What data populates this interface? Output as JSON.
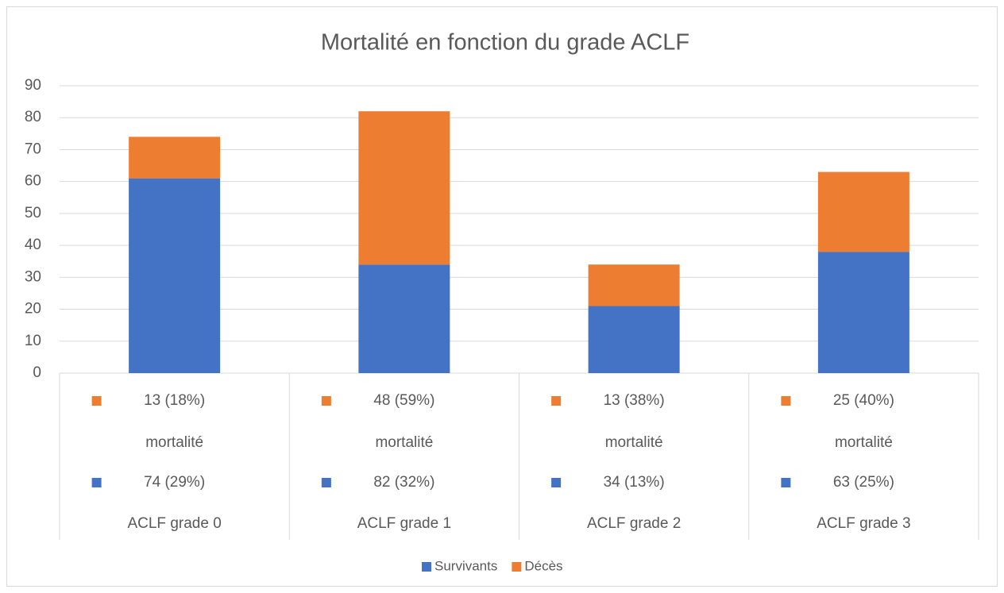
{
  "chart_data": {
    "type": "bar",
    "stacked": true,
    "title": "Mortalité en fonction du grade ACLF",
    "categories": [
      "ACLF grade 0",
      "ACLF grade 1",
      "ACLF grade 2",
      "ACLF grade 3"
    ],
    "category_lines": [
      [
        "13 (18%)",
        "mortalité",
        "74 (29%)"
      ],
      [
        "48 (59%)",
        "mortalité",
        "82 (32%)"
      ],
      [
        "13 (38%)",
        "mortalité",
        "34 (13%)"
      ],
      [
        "25 (40%)",
        "mortalité",
        "63 (25%)"
      ]
    ],
    "series": [
      {
        "name": "Survivants",
        "color": "#4472c4",
        "values": [
          61,
          34,
          21,
          38
        ]
      },
      {
        "name": "Décès",
        "color": "#ed7d31",
        "values": [
          13,
          48,
          13,
          25
        ]
      }
    ],
    "ylim": [
      0,
      90
    ],
    "yticks": [
      0,
      10,
      20,
      30,
      40,
      50,
      60,
      70,
      80,
      90
    ],
    "grid": true,
    "legend": "bottom"
  }
}
